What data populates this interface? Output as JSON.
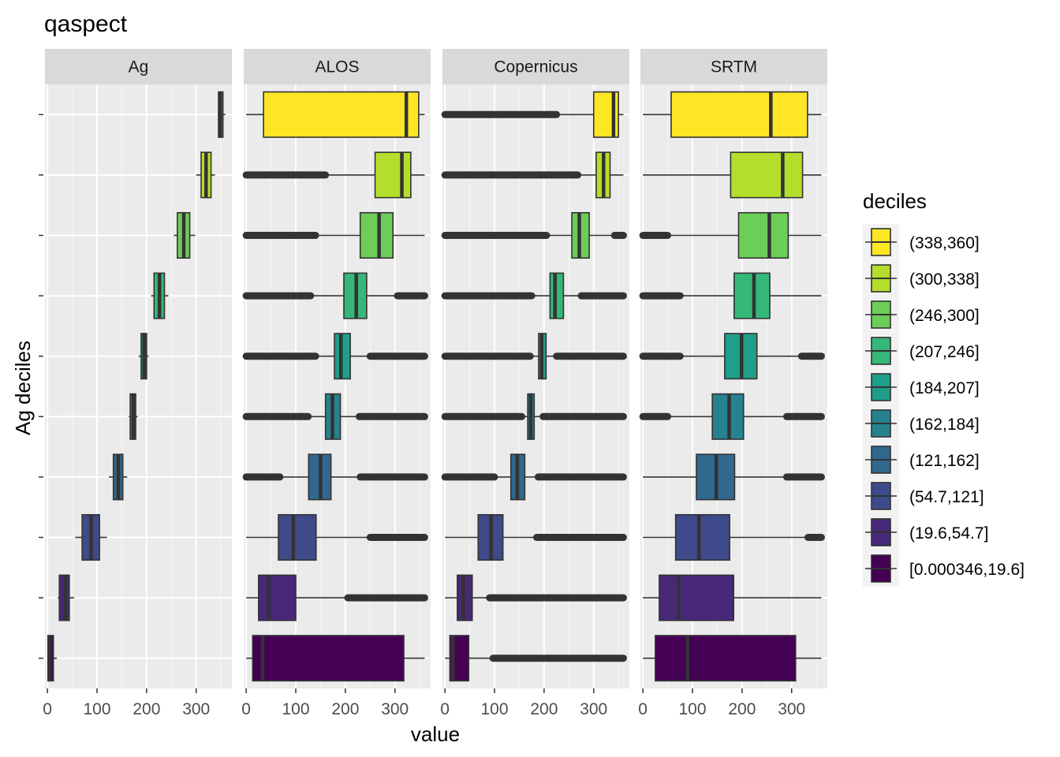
{
  "chart_data": {
    "type": "boxplot",
    "title": "qaspect",
    "xlabel": "value",
    "ylabel": "Ag deciles",
    "xlim": [
      -5,
      372
    ],
    "x_ticks": [
      0,
      100,
      200,
      300
    ],
    "x_tick_labels": [
      "0",
      "100",
      "200",
      "300"
    ],
    "legend": {
      "title": "deciles",
      "position": "right",
      "entries": [
        {
          "label": "(338,360]",
          "color": "#FDE725"
        },
        {
          "label": "(300,338]",
          "color": "#B4DE2C"
        },
        {
          "label": "(246,300]",
          "color": "#6DCD59"
        },
        {
          "label": "(207,246]",
          "color": "#35B779"
        },
        {
          "label": "(184,207]",
          "color": "#1F9E89"
        },
        {
          "label": "(162,184]",
          "color": "#26828E"
        },
        {
          "label": "(121,162]",
          "color": "#31688E"
        },
        {
          "label": "(54.7,121]",
          "color": "#3E4A89"
        },
        {
          "label": "(19.6,54.7]",
          "color": "#482878"
        },
        {
          "label": "[0.000346,19.6]",
          "color": "#440154"
        }
      ]
    },
    "panels": [
      {
        "name": "Ag",
        "boxes": [
          {
            "decile": "(338,360]",
            "wlo": 344,
            "q1": 345,
            "med": 349,
            "q3": 354,
            "whi": 359,
            "out_lo": null,
            "out_hi": null
          },
          {
            "decile": "(300,338]",
            "wlo": 300,
            "q1": 310,
            "med": 320,
            "q3": 330,
            "whi": 338,
            "out_lo": null,
            "out_hi": null
          },
          {
            "decile": "(246,300]",
            "wlo": 255,
            "q1": 262,
            "med": 275,
            "q3": 287,
            "whi": 298,
            "out_lo": null,
            "out_hi": null
          },
          {
            "decile": "(207,246]",
            "wlo": 209,
            "q1": 215,
            "med": 226,
            "q3": 236,
            "whi": 244,
            "out_lo": null,
            "out_hi": null
          },
          {
            "decile": "(184,207]",
            "wlo": 184,
            "q1": 189,
            "med": 195,
            "q3": 200,
            "whi": 204,
            "out_lo": null,
            "out_hi": null
          },
          {
            "decile": "(162,184]",
            "wlo": 164,
            "q1": 167,
            "med": 173,
            "q3": 178,
            "whi": 182,
            "out_lo": null,
            "out_hi": null
          },
          {
            "decile": "(121,162]",
            "wlo": 124,
            "q1": 133,
            "med": 143,
            "q3": 152,
            "whi": 161,
            "out_lo": null,
            "out_hi": null
          },
          {
            "decile": "(54.7,121]",
            "wlo": 56,
            "q1": 70,
            "med": 88,
            "q3": 105,
            "whi": 120,
            "out_lo": null,
            "out_hi": null
          },
          {
            "decile": "(19.6,54.7]",
            "wlo": 21,
            "q1": 24,
            "med": 36,
            "q3": 44,
            "whi": 54,
            "out_lo": null,
            "out_hi": null
          },
          {
            "decile": "[0.000346,19.6]",
            "wlo": 0,
            "q1": 1,
            "med": 5,
            "q3": 12,
            "whi": 19,
            "out_lo": null,
            "out_hi": null
          }
        ]
      },
      {
        "name": "ALOS",
        "boxes": [
          {
            "decile": "(338,360]",
            "wlo": 0,
            "q1": 35,
            "med": 323,
            "q3": 348,
            "whi": 360,
            "out_lo": null,
            "out_hi": null
          },
          {
            "decile": "(300,338]",
            "wlo": 160,
            "q1": 260,
            "med": 314,
            "q3": 332,
            "whi": 360,
            "out_lo": [
              0,
              160
            ],
            "out_hi": null
          },
          {
            "decile": "(246,300]",
            "wlo": 140,
            "q1": 230,
            "med": 268,
            "q3": 296,
            "whi": 360,
            "out_lo": [
              0,
              140
            ],
            "out_hi": null
          },
          {
            "decile": "(207,246]",
            "wlo": 130,
            "q1": 197,
            "med": 222,
            "q3": 243,
            "whi": 305,
            "out_lo": [
              0,
              130
            ],
            "out_hi": [
              305,
              360
            ]
          },
          {
            "decile": "(184,207]",
            "wlo": 140,
            "q1": 178,
            "med": 191,
            "q3": 210,
            "whi": 250,
            "out_lo": [
              0,
              140
            ],
            "out_hi": [
              250,
              360
            ]
          },
          {
            "decile": "(162,184]",
            "wlo": 125,
            "q1": 160,
            "med": 174,
            "q3": 190,
            "whi": 228,
            "out_lo": [
              0,
              125
            ],
            "out_hi": [
              228,
              360
            ]
          },
          {
            "decile": "(121,162]",
            "wlo": 68,
            "q1": 126,
            "med": 150,
            "q3": 171,
            "whi": 230,
            "out_lo": [
              0,
              68
            ],
            "out_hi": [
              230,
              360
            ]
          },
          {
            "decile": "(54.7,121]",
            "wlo": 0,
            "q1": 65,
            "med": 95,
            "q3": 141,
            "whi": 250,
            "out_lo": null,
            "out_hi": [
              250,
              360
            ]
          },
          {
            "decile": "(19.6,54.7]",
            "wlo": 0,
            "q1": 25,
            "med": 45,
            "q3": 100,
            "whi": 205,
            "out_lo": null,
            "out_hi": [
              205,
              360
            ]
          },
          {
            "decile": "[0.000346,19.6]",
            "wlo": 0,
            "q1": 13,
            "med": 33,
            "q3": 318,
            "whi": 360,
            "out_lo": null,
            "out_hi": null
          }
        ]
      },
      {
        "name": "Copernicus",
        "boxes": [
          {
            "decile": "(338,360]",
            "wlo": 225,
            "q1": 300,
            "med": 340,
            "q3": 350,
            "whi": 360,
            "out_lo": [
              0,
              225
            ],
            "out_hi": null
          },
          {
            "decile": "(300,338]",
            "wlo": 268,
            "q1": 305,
            "med": 320,
            "q3": 333,
            "whi": 360,
            "out_lo": [
              0,
              268
            ],
            "out_hi": null
          },
          {
            "decile": "(246,300]",
            "wlo": 205,
            "q1": 256,
            "med": 271,
            "q3": 291,
            "whi": 342,
            "out_lo": [
              0,
              205
            ],
            "out_hi": [
              342,
              360
            ]
          },
          {
            "decile": "(207,246]",
            "wlo": 175,
            "q1": 212,
            "med": 222,
            "q3": 239,
            "whi": 275,
            "out_lo": [
              0,
              175
            ],
            "out_hi": [
              275,
              360
            ]
          },
          {
            "decile": "(184,207]",
            "wlo": 172,
            "q1": 189,
            "med": 195,
            "q3": 204,
            "whi": 225,
            "out_lo": [
              0,
              172
            ],
            "out_hi": [
              225,
              360
            ]
          },
          {
            "decile": "(162,184]",
            "wlo": 155,
            "q1": 167,
            "med": 173,
            "q3": 180,
            "whi": 198,
            "out_lo": [
              0,
              155
            ],
            "out_hi": [
              198,
              360
            ]
          },
          {
            "decile": "(121,162]",
            "wlo": 100,
            "q1": 133,
            "med": 146,
            "q3": 161,
            "whi": 188,
            "out_lo": [
              0,
              100
            ],
            "out_hi": [
              188,
              360
            ]
          },
          {
            "decile": "(54.7,121]",
            "wlo": 0,
            "q1": 67,
            "med": 93,
            "q3": 117,
            "whi": 185,
            "out_lo": null,
            "out_hi": [
              185,
              360
            ]
          },
          {
            "decile": "(19.6,54.7]",
            "wlo": 0,
            "q1": 25,
            "med": 37,
            "q3": 55,
            "whi": 90,
            "out_lo": null,
            "out_hi": [
              90,
              360
            ]
          },
          {
            "decile": "[0.000346,19.6]",
            "wlo": 0,
            "q1": 10,
            "med": 16,
            "q3": 48,
            "whi": 97,
            "out_lo": null,
            "out_hi": [
              97,
              360
            ]
          }
        ]
      },
      {
        "name": "SRTM",
        "boxes": [
          {
            "decile": "(338,360]",
            "wlo": 0,
            "q1": 57,
            "med": 258,
            "q3": 332,
            "whi": 360,
            "out_lo": null,
            "out_hi": null
          },
          {
            "decile": "(300,338]",
            "wlo": 0,
            "q1": 177,
            "med": 282,
            "q3": 322,
            "whi": 360,
            "out_lo": null,
            "out_hi": null
          },
          {
            "decile": "(246,300]",
            "wlo": 50,
            "q1": 193,
            "med": 255,
            "q3": 293,
            "whi": 360,
            "out_lo": [
              0,
              50
            ],
            "out_hi": null
          },
          {
            "decile": "(207,246]",
            "wlo": 75,
            "q1": 184,
            "med": 224,
            "q3": 256,
            "whi": 360,
            "out_lo": [
              0,
              75
            ],
            "out_hi": null
          },
          {
            "decile": "(184,207]",
            "wlo": 75,
            "q1": 165,
            "med": 199,
            "q3": 230,
            "whi": 320,
            "out_lo": [
              0,
              75
            ],
            "out_hi": [
              320,
              360
            ]
          },
          {
            "decile": "(162,184]",
            "wlo": 50,
            "q1": 140,
            "med": 174,
            "q3": 203,
            "whi": 290,
            "out_lo": [
              0,
              50
            ],
            "out_hi": [
              290,
              360
            ]
          },
          {
            "decile": "(121,162]",
            "wlo": 0,
            "q1": 108,
            "med": 148,
            "q3": 185,
            "whi": 290,
            "out_lo": null,
            "out_hi": [
              290,
              360
            ]
          },
          {
            "decile": "(54.7,121]",
            "wlo": 0,
            "q1": 66,
            "med": 113,
            "q3": 175,
            "whi": 333,
            "out_lo": null,
            "out_hi": [
              333,
              360
            ]
          },
          {
            "decile": "(19.6,54.7]",
            "wlo": 0,
            "q1": 33,
            "med": 72,
            "q3": 183,
            "whi": 360,
            "out_lo": null,
            "out_hi": null
          },
          {
            "decile": "[0.000346,19.6]",
            "wlo": 0,
            "q1": 25,
            "med": 90,
            "q3": 308,
            "whi": 360,
            "out_lo": null,
            "out_hi": null
          }
        ]
      }
    ]
  }
}
